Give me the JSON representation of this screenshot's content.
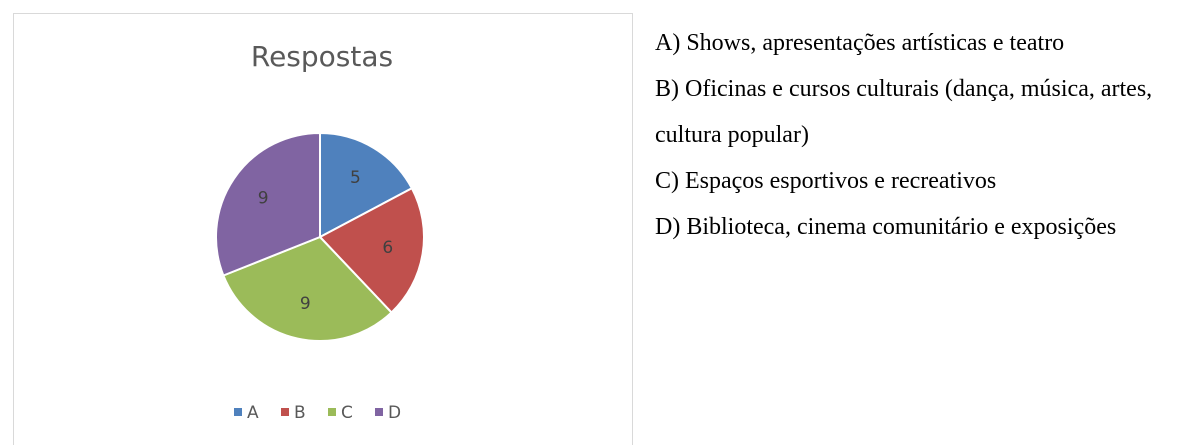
{
  "chart_data": {
    "type": "pie",
    "title": "Respostas",
    "categories": [
      "A",
      "B",
      "C",
      "D"
    ],
    "values": [
      5,
      6,
      9,
      9
    ],
    "colors": [
      "#4f81bd",
      "#c0504d",
      "#9bbb59",
      "#8064a2"
    ],
    "legend": "bottom"
  },
  "document": {
    "items": [
      "A) Shows, apresentações artísticas e teatro",
      "B) Oficinas e cursos culturais (dança, música, artes, cultura popular)",
      "C) Espaços esportivos e recreativos",
      "D) Biblioteca, cinema comunitário e exposições"
    ]
  }
}
